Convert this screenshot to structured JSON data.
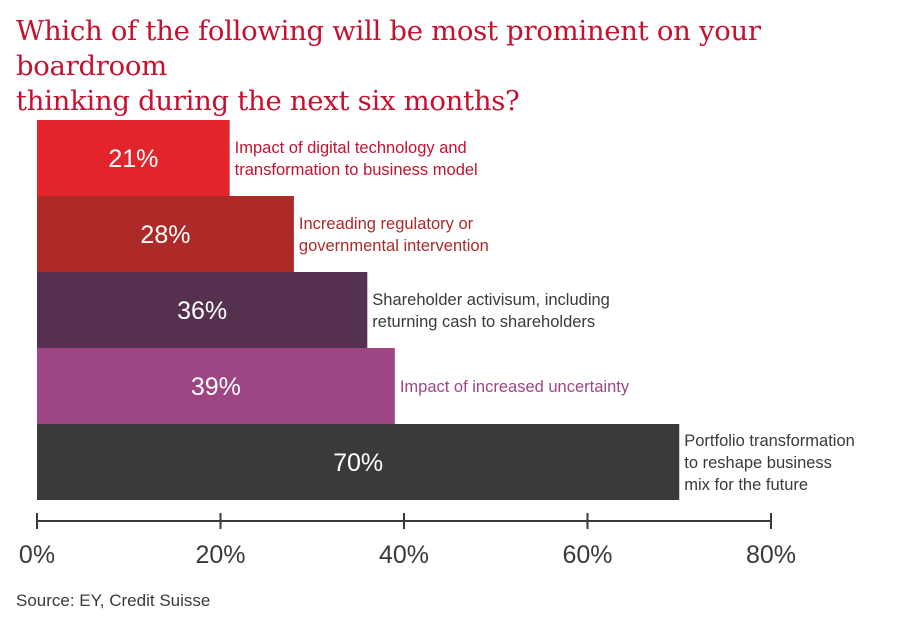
{
  "title_lines": [
    "Which of the following will be most prominent on your boardroom",
    "thinking during the next six months?"
  ],
  "source": "Source: EY, Credit Suisse",
  "chart_data": {
    "type": "bar",
    "orientation": "horizontal",
    "title": "Which of the following will be most prominent on your boardroom thinking during the next six months?",
    "categories": [
      "Impact of digital technology and transformation to business model",
      "Increading regulatory or governmental intervention",
      "Shareholder activisum, including returning cash to shareholders",
      "Impact of increased uncertainty",
      "Portfolio transformation to reshape business mix for the future"
    ],
    "label_lines": [
      [
        "Impact of digital technology and",
        "transformation to business model"
      ],
      [
        "Increading regulatory or",
        "governmental intervention"
      ],
      [
        "Shareholder activisum, including",
        "returning cash to shareholders"
      ],
      [
        "Impact of increased uncertainty"
      ],
      [
        "Portfolio transformation",
        "to reshape business",
        "mix for the future"
      ]
    ],
    "values": [
      21,
      28,
      36,
      39,
      70
    ],
    "value_labels": [
      "21%",
      "28%",
      "36%",
      "39%",
      "70%"
    ],
    "bar_colors": [
      "#e3242b",
      "#ae2a28",
      "#56304f",
      "#9e4584",
      "#3a3a3a"
    ],
    "label_colors": [
      "#c8102e",
      "#ae2a28",
      "#3a3a3a",
      "#9e4584",
      "#3a3a3a"
    ],
    "xlim": [
      0,
      80
    ],
    "xticks": [
      0,
      20,
      40,
      60,
      80
    ],
    "xtick_labels": [
      "0%",
      "20%",
      "40%",
      "60%",
      "80%"
    ],
    "grid": false,
    "legend": "none"
  }
}
